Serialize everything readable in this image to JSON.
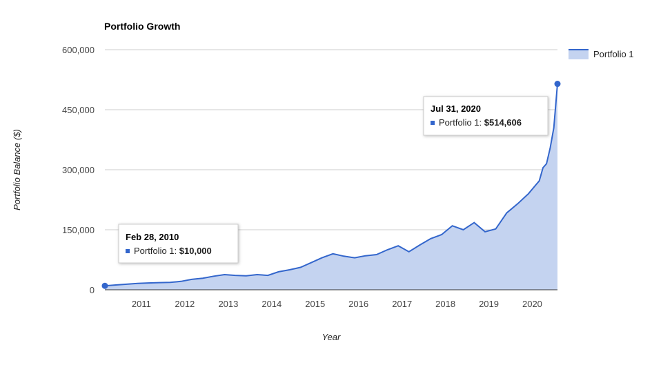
{
  "chart_data": {
    "type": "area",
    "title": "Portfolio Growth",
    "xlabel": "Year",
    "ylabel": "Portfolio Balance ($)",
    "ylim": [
      0,
      600000
    ],
    "yticks": [
      0,
      150000,
      300000,
      450000,
      600000
    ],
    "ytick_labels": [
      "0",
      "150,000",
      "300,000",
      "450,000",
      "600,000"
    ],
    "xlim": [
      "2010-02-28",
      "2020-07-31"
    ],
    "xticks": [
      "2011",
      "2012",
      "2013",
      "2014",
      "2015",
      "2016",
      "2017",
      "2018",
      "2019",
      "2020"
    ],
    "grid": true,
    "legend_position": "top-right",
    "series": [
      {
        "name": "Portfolio 1",
        "color": "#3366cc",
        "fill": "#c4d3f0",
        "x": [
          "2010-02-28",
          "2010-05-31",
          "2010-08-31",
          "2010-11-30",
          "2011-02-28",
          "2011-05-31",
          "2011-08-31",
          "2011-11-30",
          "2012-02-28",
          "2012-05-31",
          "2012-08-31",
          "2012-11-30",
          "2013-02-28",
          "2013-05-31",
          "2013-08-31",
          "2013-11-30",
          "2014-02-28",
          "2014-05-31",
          "2014-08-31",
          "2014-11-30",
          "2015-02-28",
          "2015-05-31",
          "2015-08-31",
          "2015-11-30",
          "2016-02-28",
          "2016-05-31",
          "2016-08-31",
          "2016-11-30",
          "2017-02-28",
          "2017-05-31",
          "2017-08-31",
          "2017-11-30",
          "2018-02-28",
          "2018-05-31",
          "2018-08-31",
          "2018-11-30",
          "2019-02-28",
          "2019-05-31",
          "2019-08-31",
          "2019-11-30",
          "2020-01-31",
          "2020-02-29",
          "2020-03-31",
          "2020-04-30",
          "2020-05-31",
          "2020-06-30",
          "2020-07-31"
        ],
        "values": [
          10000,
          12000,
          14000,
          16000,
          17000,
          18000,
          18500,
          21000,
          26000,
          29000,
          34000,
          38000,
          36000,
          35000,
          38000,
          36000,
          45000,
          50000,
          56000,
          68000,
          80000,
          90000,
          84000,
          80000,
          85000,
          88000,
          100000,
          110000,
          95000,
          112000,
          128000,
          138000,
          160000,
          150000,
          168000,
          145000,
          152000,
          192000,
          215000,
          240000,
          262000,
          272000,
          305000,
          315000,
          355000,
          405000,
          514606
        ]
      }
    ],
    "annotations": [
      {
        "date": "Feb 28, 2010",
        "label": "Portfolio 1: ",
        "value": "$10,000"
      },
      {
        "date": "Jul 31, 2020",
        "label": "Portfolio 1: ",
        "value": "$514,606"
      }
    ]
  }
}
